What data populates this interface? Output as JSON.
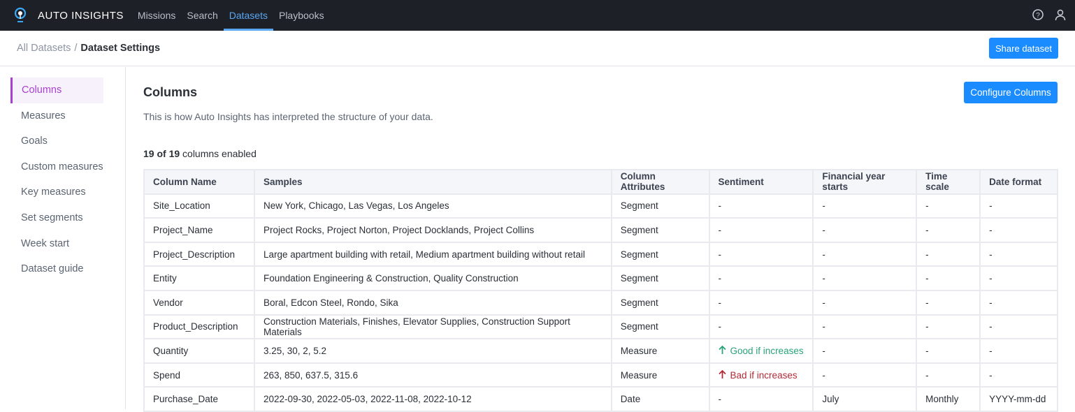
{
  "app": {
    "brand": "AUTO INSIGHTS",
    "nav": [
      "Missions",
      "Search",
      "Datasets",
      "Playbooks"
    ],
    "active_nav": "Datasets"
  },
  "breadcrumb": {
    "parent": "All Datasets",
    "separator": "/",
    "current": "Dataset Settings"
  },
  "share_label": "Share dataset",
  "sidebar": {
    "items": [
      "Columns",
      "Measures",
      "Goals",
      "Custom measures",
      "Key measures",
      "Set segments",
      "Week start",
      "Dataset guide"
    ],
    "active": "Columns"
  },
  "main": {
    "title": "Columns",
    "description": "This is how Auto Insights has interpreted the structure of your data.",
    "configure_label": "Configure Columns",
    "count_bold": "19 of 19",
    "count_rest": " columns enabled"
  },
  "colors": {
    "accent": "#1a8cff",
    "sidebar_active": "#a73fd0",
    "good": "#2aa37a",
    "bad": "#b02a37"
  },
  "table": {
    "headers": [
      "Column Name",
      "Samples",
      "Column Attributes",
      "Sentiment",
      "Financial year starts",
      "Time scale",
      "Date format"
    ],
    "rows": [
      [
        "Site_Location",
        "New York, Chicago, Las Vegas, Los Angeles",
        "Segment",
        "-",
        "-",
        "-",
        "-"
      ],
      [
        "Project_Name",
        "Project Rocks, Project Norton, Project Docklands, Project Collins",
        "Segment",
        "-",
        "-",
        "-",
        "-"
      ],
      [
        "Project_Description",
        "Large apartment building with retail, Medium apartment building without retail",
        "Segment",
        "-",
        "-",
        "-",
        "-"
      ],
      [
        "Entity",
        "Foundation Engineering & Construction, Quality Construction",
        "Segment",
        "-",
        "-",
        "-",
        "-"
      ],
      [
        "Vendor",
        "Boral, Edcon Steel, Rondo, Sika",
        "Segment",
        "-",
        "-",
        "-",
        "-"
      ],
      [
        "Product_Description",
        "Construction Materials, Finishes, Elevator Supplies, Construction Support Materials",
        "Segment",
        "-",
        "-",
        "-",
        "-"
      ],
      [
        "Quantity",
        "3.25, 30, 2, 5.2",
        "Measure",
        "Good if increases",
        "-",
        "-",
        "-"
      ],
      [
        "Spend",
        "263, 850, 637.5, 315.6",
        "Measure",
        "Bad if increases",
        "-",
        "-",
        "-"
      ],
      [
        "Purchase_Date",
        "2022-09-30, 2022-05-03, 2022-11-08, 2022-10-12",
        "Date",
        "-",
        "July",
        "Monthly",
        "YYYY-mm-dd"
      ]
    ]
  }
}
